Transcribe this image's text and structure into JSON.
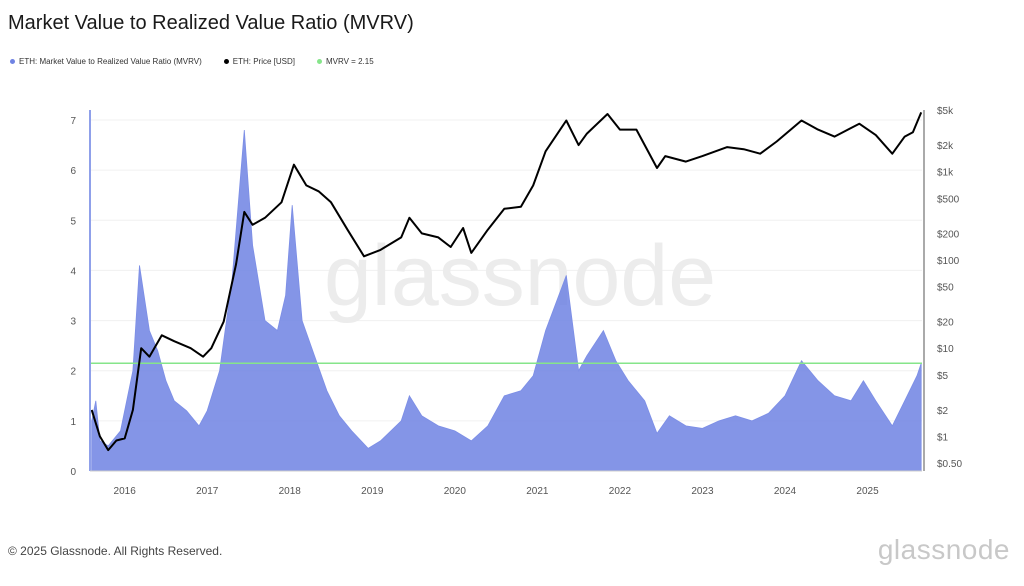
{
  "chart_data": {
    "type": "area",
    "title": "Market Value to Realized Value Ratio (MVRV)",
    "watermark": "glassnode",
    "legend_position": "top-left",
    "legend": [
      {
        "name": "ETH: Market Value to Realized Value Ratio (MVRV)",
        "color": "#6f83e3"
      },
      {
        "name": "ETH: Price [USD]",
        "color": "#000000"
      },
      {
        "name": "MVRV = 2.15",
        "color": "#86e58a"
      }
    ],
    "x_ticks": [
      "2016",
      "2017",
      "2018",
      "2019",
      "2020",
      "2021",
      "2022",
      "2023",
      "2024",
      "2025"
    ],
    "x_tick_values": [
      2016,
      2017,
      2018,
      2019,
      2020,
      2021,
      2022,
      2023,
      2024,
      2025
    ],
    "xlim": [
      2015.58,
      2025.66
    ],
    "y_left": {
      "ylim": [
        0,
        7
      ],
      "ticks": [
        "0",
        "1",
        "2",
        "3",
        "4",
        "5",
        "6",
        "7"
      ],
      "tick_values": [
        0,
        1,
        2,
        3,
        4,
        5,
        6,
        7
      ]
    },
    "y_right": {
      "scale": "log",
      "ylim": [
        0.5,
        5000
      ],
      "ticks": [
        "$5k",
        "$2k",
        "$1k",
        "$500",
        "$200",
        "$100",
        "$50",
        "$20",
        "$10",
        "$5",
        "$2",
        "$1",
        "$0.50"
      ],
      "tick_values": [
        5000,
        2000,
        1000,
        500,
        200,
        100,
        50,
        20,
        10,
        5,
        2,
        1,
        0.5
      ]
    },
    "threshold": 2.15,
    "series": [
      {
        "name": "MVRV",
        "axis": "left",
        "x": [
          2015.6,
          2015.65,
          2015.7,
          2015.8,
          2015.95,
          2016.1,
          2016.18,
          2016.3,
          2016.4,
          2016.5,
          2016.6,
          2016.75,
          2016.9,
          2017.0,
          2017.15,
          2017.3,
          2017.45,
          2017.55,
          2017.7,
          2017.85,
          2017.95,
          2018.03,
          2018.15,
          2018.3,
          2018.45,
          2018.6,
          2018.75,
          2018.95,
          2019.1,
          2019.35,
          2019.45,
          2019.6,
          2019.8,
          2020.0,
          2020.2,
          2020.4,
          2020.6,
          2020.8,
          2020.95,
          2021.1,
          2021.35,
          2021.5,
          2021.6,
          2021.8,
          2021.95,
          2022.1,
          2022.3,
          2022.45,
          2022.6,
          2022.8,
          2023.0,
          2023.2,
          2023.4,
          2023.6,
          2023.8,
          2024.0,
          2024.2,
          2024.4,
          2024.6,
          2024.8,
          2024.95,
          2025.1,
          2025.3,
          2025.45,
          2025.6,
          2025.65
        ],
        "values": [
          1.0,
          1.4,
          0.6,
          0.5,
          0.8,
          2.0,
          4.1,
          2.8,
          2.4,
          1.8,
          1.4,
          1.2,
          0.9,
          1.2,
          2.0,
          3.8,
          6.8,
          4.5,
          3.0,
          2.8,
          3.5,
          5.3,
          3.0,
          2.3,
          1.6,
          1.1,
          0.8,
          0.45,
          0.6,
          1.0,
          1.5,
          1.1,
          0.9,
          0.8,
          0.6,
          0.9,
          1.5,
          1.6,
          1.9,
          2.8,
          3.9,
          2.0,
          2.3,
          2.8,
          2.2,
          1.8,
          1.4,
          0.75,
          1.1,
          0.9,
          0.85,
          1.0,
          1.1,
          1.0,
          1.15,
          1.5,
          2.2,
          1.8,
          1.5,
          1.4,
          1.8,
          1.4,
          0.9,
          1.4,
          1.9,
          2.15
        ]
      },
      {
        "name": "ETH Price [USD]",
        "axis": "right",
        "x": [
          2015.6,
          2015.7,
          2015.8,
          2015.9,
          2016.0,
          2016.1,
          2016.2,
          2016.3,
          2016.45,
          2016.6,
          2016.8,
          2016.95,
          2017.05,
          2017.2,
          2017.35,
          2017.45,
          2017.55,
          2017.7,
          2017.9,
          2018.05,
          2018.2,
          2018.35,
          2018.5,
          2018.7,
          2018.9,
          2019.1,
          2019.35,
          2019.45,
          2019.6,
          2019.8,
          2019.95,
          2020.1,
          2020.2,
          2020.4,
          2020.6,
          2020.8,
          2020.95,
          2021.1,
          2021.35,
          2021.5,
          2021.6,
          2021.85,
          2022.0,
          2022.2,
          2022.45,
          2022.55,
          2022.8,
          2023.0,
          2023.3,
          2023.5,
          2023.7,
          2023.9,
          2024.2,
          2024.4,
          2024.6,
          2024.9,
          2025.1,
          2025.3,
          2025.45,
          2025.55,
          2025.65
        ],
        "values": [
          2,
          1,
          0.7,
          0.9,
          0.95,
          2,
          10,
          8,
          14,
          12,
          10,
          8,
          10,
          20,
          90,
          350,
          250,
          300,
          450,
          1200,
          700,
          600,
          450,
          220,
          110,
          130,
          180,
          300,
          200,
          180,
          140,
          230,
          120,
          220,
          380,
          400,
          700,
          1700,
          3800,
          2000,
          2700,
          4500,
          3000,
          3000,
          1100,
          1500,
          1300,
          1500,
          1900,
          1800,
          1600,
          2200,
          3800,
          3000,
          2500,
          3500,
          2600,
          1600,
          2500,
          2800,
          4700
        ]
      }
    ]
  },
  "footer": {
    "copyright": "© 2025 Glassnode. All Rights Reserved.",
    "logo": "glassnode"
  }
}
